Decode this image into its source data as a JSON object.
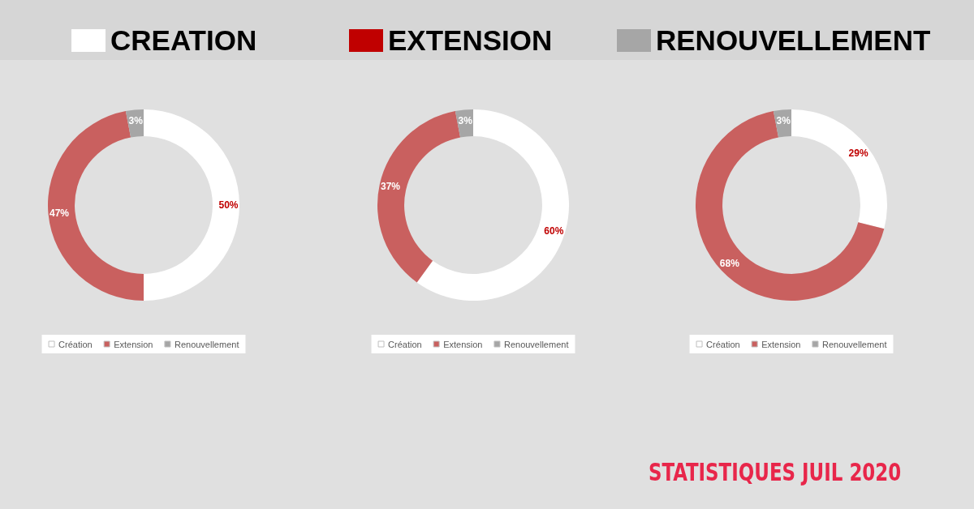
{
  "chart_data": [
    {
      "type": "other",
      "categories": [
        "CREATION",
        "EXTENSION",
        "RENOUVELLEMENT"
      ],
      "colors": [
        "#ffffff",
        "#c00000",
        "#a6a6a6"
      ],
      "annotations": [
        "STATISTIQUES JUIL 2020"
      ]
    },
    {
      "type": "donut",
      "categories": [
        "Création",
        "Extension",
        "Renouvellement"
      ],
      "values": [
        50,
        47,
        3
      ],
      "value_labels": [
        "50%",
        "47%",
        "3%"
      ],
      "colors": [
        "#ffffff",
        "#c9605f",
        "#a6a6a6"
      ],
      "legend": "bottom"
    },
    {
      "type": "donut",
      "categories": [
        "Création",
        "Extension",
        "Renouvellement"
      ],
      "values": [
        60,
        37,
        3
      ],
      "value_labels": [
        "60%",
        "37%",
        "3%"
      ],
      "colors": [
        "#ffffff",
        "#c9605f",
        "#a6a6a6"
      ],
      "legend": "bottom"
    },
    {
      "type": "donut",
      "categories": [
        "Création",
        "Extension",
        "Renouvellement"
      ],
      "values": [
        29,
        68,
        3
      ],
      "value_labels": [
        "29%",
        "68%",
        "3%"
      ],
      "colors": [
        "#ffffff",
        "#c9605f",
        "#a6a6a6"
      ],
      "legend": "bottom"
    }
  ]
}
